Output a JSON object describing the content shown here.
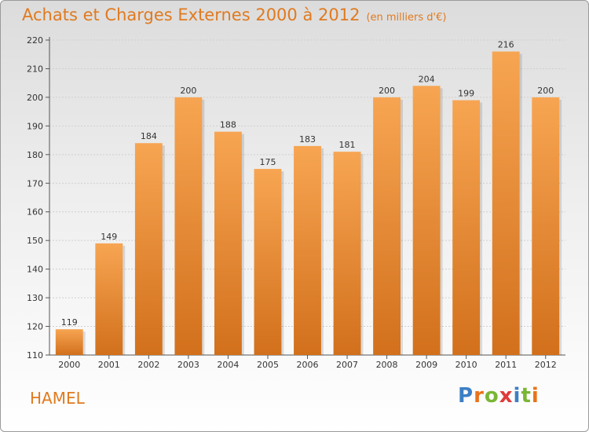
{
  "chart_data": {
    "type": "bar",
    "title": "Achats et Charges Externes 2000 à 2012",
    "subtitle": "(en milliers d'€)",
    "categories": [
      "2000",
      "2001",
      "2002",
      "2003",
      "2004",
      "2005",
      "2006",
      "2007",
      "2008",
      "2009",
      "2010",
      "2011",
      "2012"
    ],
    "values": [
      119,
      149,
      184,
      200,
      188,
      175,
      183,
      181,
      200,
      204,
      199,
      216,
      200
    ],
    "yticks": [
      110,
      120,
      130,
      140,
      150,
      160,
      170,
      180,
      190,
      200,
      210,
      220
    ],
    "ylim": [
      110,
      220
    ],
    "xlabel": "",
    "ylabel": "",
    "grid": true,
    "colors": {
      "bar_top": "#f7a552",
      "bar_bottom": "#d2701c",
      "accent": "#e07a1f"
    }
  },
  "commune": "HAMEL",
  "logo": {
    "text": "Proxiti",
    "letters": [
      "P",
      "r",
      "o",
      "x",
      "i",
      "t",
      "i"
    ],
    "colors": [
      "#3d7fc4",
      "#e8731c",
      "#7ab636",
      "#e03a3a",
      "#3d7fc4",
      "#7ab636",
      "#e8731c"
    ]
  }
}
